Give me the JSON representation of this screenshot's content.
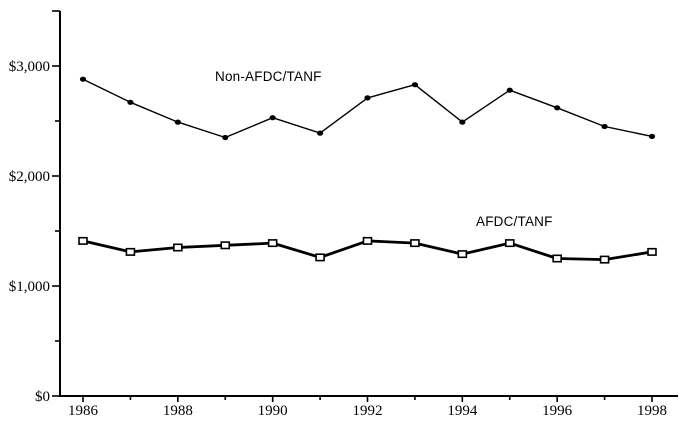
{
  "figure": {
    "background": "#ffffff",
    "axis_color": "#000000",
    "marker_fill_open": "#ffffff"
  },
  "chart_data": {
    "type": "line",
    "title": "",
    "xlabel": "",
    "ylabel": "",
    "ylim": [
      0,
      3500
    ],
    "xlim": [
      1986,
      1998
    ],
    "grid": false,
    "legend_position": "inline-annotations",
    "x": [
      1986,
      1987,
      1988,
      1989,
      1990,
      1991,
      1992,
      1993,
      1994,
      1995,
      1996,
      1997,
      1998
    ],
    "series": [
      {
        "name": "Non-AFDC/TANF",
        "marker": "filled-circle",
        "color": "#000000",
        "values": [
          2880,
          2670,
          2490,
          2350,
          2530,
          2390,
          2710,
          2830,
          2490,
          2780,
          2620,
          2450,
          2360
        ]
      },
      {
        "name": "AFDC/TANF",
        "marker": "open-square",
        "color": "#000000",
        "values": [
          1410,
          1310,
          1350,
          1370,
          1390,
          1260,
          1410,
          1390,
          1290,
          1390,
          1250,
          1240,
          1310
        ]
      }
    ],
    "y_ticks": [
      {
        "value": 0,
        "label": "$0"
      },
      {
        "value": 500,
        "label": ""
      },
      {
        "value": 1000,
        "label": "$1,000"
      },
      {
        "value": 1500,
        "label": ""
      },
      {
        "value": 2000,
        "label": "$2,000"
      },
      {
        "value": 2500,
        "label": ""
      },
      {
        "value": 3000,
        "label": "$3,000"
      },
      {
        "value": 3500,
        "label": ""
      }
    ],
    "x_ticks": [
      {
        "value": 1986,
        "label": "1986"
      },
      {
        "value": 1987,
        "label": ""
      },
      {
        "value": 1988,
        "label": "1988"
      },
      {
        "value": 1989,
        "label": ""
      },
      {
        "value": 1990,
        "label": "1990"
      },
      {
        "value": 1991,
        "label": ""
      },
      {
        "value": 1992,
        "label": "1992"
      },
      {
        "value": 1993,
        "label": ""
      },
      {
        "value": 1994,
        "label": "1994"
      },
      {
        "value": 1995,
        "label": ""
      },
      {
        "value": 1996,
        "label": "1996"
      },
      {
        "value": 1997,
        "label": ""
      },
      {
        "value": 1998,
        "label": "1998"
      }
    ]
  }
}
